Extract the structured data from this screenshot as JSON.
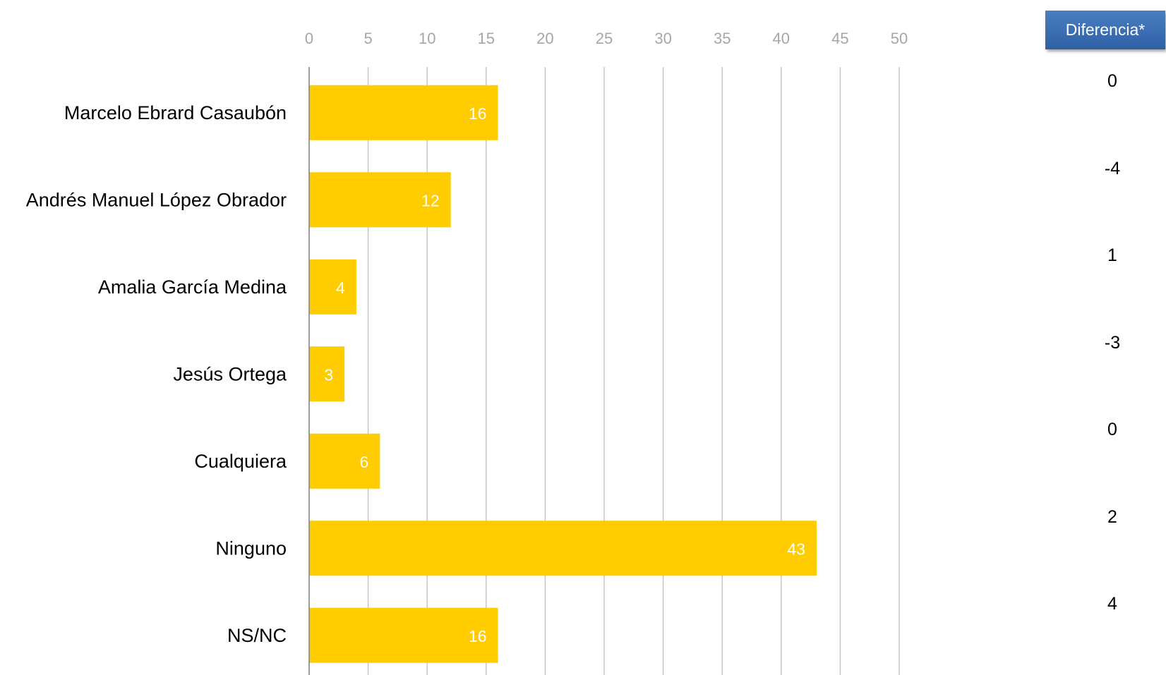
{
  "chart_data": {
    "type": "bar",
    "orientation": "horizontal",
    "categories": [
      "Marcelo Ebrard Casaubón",
      "Andrés Manuel López Obrador",
      "Amalia García Medina",
      "Jesús Ortega",
      "Cualquiera",
      "Ninguno",
      "NS/NC"
    ],
    "values": [
      16,
      12,
      4,
      3,
      6,
      43,
      16
    ],
    "data_labels": [
      "16",
      "12",
      "4",
      "3",
      "6",
      "43",
      "16"
    ],
    "xlim": [
      0,
      50
    ],
    "x_ticks": [
      "0",
      "5",
      "10",
      "15",
      "20",
      "25",
      "30",
      "35",
      "40",
      "45",
      "50"
    ],
    "x_axis_position": "top",
    "grid": true,
    "bar_color": "#FFCC00"
  },
  "difference_panel": {
    "header": "Diferencia*",
    "values": [
      "0",
      "-4",
      "1",
      "-3",
      "0",
      "2",
      "4"
    ]
  }
}
